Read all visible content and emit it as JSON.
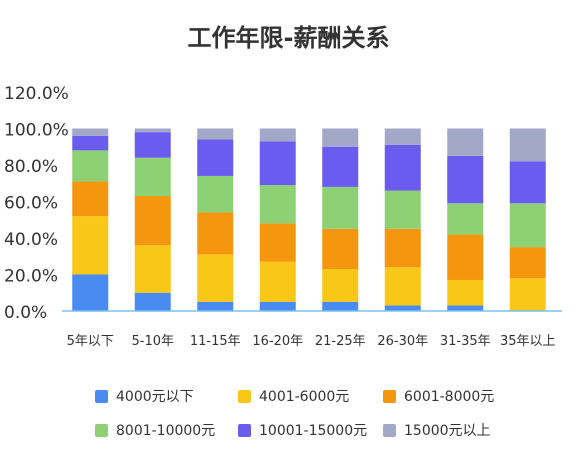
{
  "chart_data": {
    "type": "bar",
    "stacked": true,
    "title": "工作年限-薪酬关系",
    "xlabel": "",
    "ylabel": "",
    "ylim": [
      0,
      1.2
    ],
    "yticks": [
      "0.0%",
      "20.0%",
      "40.0%",
      "60.0%",
      "80.0%",
      "100.0%",
      "120.0%"
    ],
    "grid": false,
    "legend": "bottom",
    "categories": [
      "5年以下",
      "5-10年",
      "11-15年",
      "16-20年",
      "21-25年",
      "26-30年",
      "31-35年",
      "35年以上"
    ],
    "series": [
      {
        "name": "4000元以下",
        "color": "#4a8bf2",
        "values": [
          0.2,
          0.1,
          0.05,
          0.05,
          0.05,
          0.03,
          0.03,
          0.0
        ]
      },
      {
        "name": "4001-6000元",
        "color": "#f9c718",
        "values": [
          0.32,
          0.26,
          0.26,
          0.22,
          0.18,
          0.21,
          0.14,
          0.18
        ]
      },
      {
        "name": "6001-8000元",
        "color": "#f5960f",
        "values": [
          0.19,
          0.27,
          0.23,
          0.21,
          0.22,
          0.21,
          0.25,
          0.17
        ]
      },
      {
        "name": "8001-10000元",
        "color": "#8ed074",
        "values": [
          0.17,
          0.21,
          0.2,
          0.21,
          0.23,
          0.21,
          0.17,
          0.24
        ]
      },
      {
        "name": "10001-15000元",
        "color": "#6a5cef",
        "values": [
          0.08,
          0.14,
          0.2,
          0.24,
          0.22,
          0.25,
          0.26,
          0.23
        ]
      },
      {
        "name": "15000元以上",
        "color": "#a3a7c8",
        "values": [
          0.04,
          0.02,
          0.06,
          0.07,
          0.1,
          0.09,
          0.15,
          0.18
        ]
      }
    ]
  }
}
